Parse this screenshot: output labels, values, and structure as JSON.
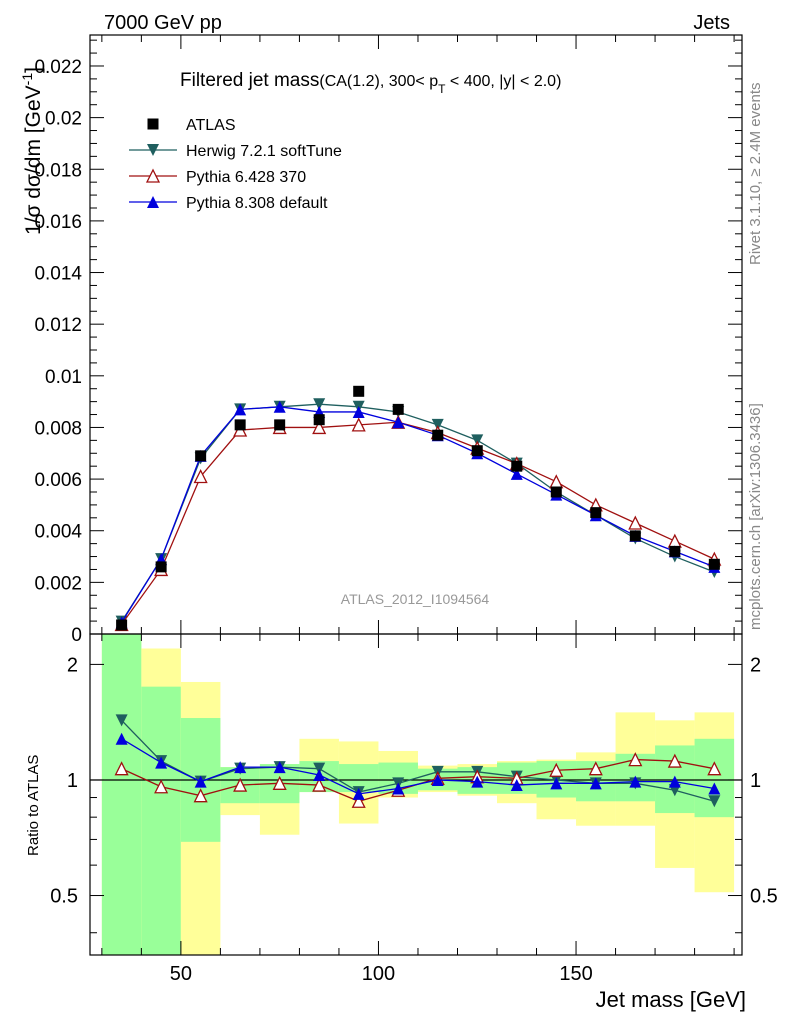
{
  "header": {
    "left": "7000 GeV pp",
    "right": "Jets"
  },
  "chart_title": {
    "main": "Filtered jet mass",
    "sub_prefix": "(CA(1.2), 300< p",
    "sub_sub": "T",
    "sub_suffix": " < 400, |y| < 2.0)"
  },
  "side_labels": {
    "rivet": "Rivet 3.1.10, ≥ 2.4M events",
    "mcplots": "mcplots.cern.ch [arXiv:1306.3436]"
  },
  "watermark": "ATLAS_2012_I1094564",
  "axes": {
    "ylabel_main": "1/σ dσ/dm [GeV",
    "ylabel_main_sup": "-1",
    "ylabel_main_close": "]",
    "ylabel_ratio": "Ratio to ATLAS",
    "xlabel": "Jet mass [GeV]"
  },
  "colors": {
    "herwig": "#1f5f5f",
    "pythia6": "#a01010",
    "pythia8": "#0000dd",
    "data": "#000000",
    "band_inner": "#99ff99",
    "band_outer": "#ffff99"
  },
  "chart_data": [
    {
      "type": "scatter",
      "panel": "main",
      "xlim": [
        27,
        192
      ],
      "ylim": [
        0,
        0.0232
      ],
      "x_ticks": [
        50,
        100,
        150
      ],
      "y_ticks": [
        0,
        0.002,
        0.004,
        0.006,
        0.008,
        0.01,
        0.012,
        0.014,
        0.016,
        0.018,
        0.02,
        0.022
      ],
      "y_tick_labels": [
        "0",
        "0.002",
        "0.004",
        "0.006",
        "0.008",
        "0.01",
        "0.012",
        "0.014",
        "0.016",
        "0.018",
        "0.02",
        "0.022"
      ],
      "legend_position": "top-left",
      "x": [
        35,
        45,
        55,
        65,
        75,
        85,
        95,
        105,
        115,
        125,
        135,
        145,
        155,
        165,
        175,
        185
      ],
      "series": [
        {
          "name": "ATLAS",
          "marker": "square",
          "values": [
            0.00035,
            0.0026,
            0.0069,
            0.0081,
            0.0081,
            0.0083,
            0.0094,
            0.0087,
            0.0077,
            0.0071,
            0.0065,
            0.0055,
            0.0047,
            0.0038,
            0.0032,
            0.0027
          ]
        },
        {
          "name": "Herwig 7.2.1 softTune",
          "marker": "triangle-down",
          "values": [
            0.00048,
            0.0029,
            0.0068,
            0.0087,
            0.0088,
            0.0089,
            0.0088,
            0.0086,
            0.0081,
            0.0075,
            0.0066,
            0.0055,
            0.0046,
            0.0037,
            0.003,
            0.0024
          ]
        },
        {
          "name": "Pythia 6.428 370",
          "marker": "triangle-open",
          "values": [
            0.00037,
            0.0025,
            0.0061,
            0.0079,
            0.008,
            0.008,
            0.0081,
            0.0082,
            0.0078,
            0.0072,
            0.0066,
            0.0059,
            0.005,
            0.0043,
            0.0036,
            0.0029
          ]
        },
        {
          "name": "Pythia 8.308 default",
          "marker": "triangle-up",
          "values": [
            0.00045,
            0.0029,
            0.0069,
            0.0087,
            0.0088,
            0.0086,
            0.0086,
            0.0082,
            0.0077,
            0.007,
            0.0062,
            0.0054,
            0.0046,
            0.0038,
            0.0032,
            0.0026
          ]
        }
      ]
    },
    {
      "type": "line",
      "panel": "ratio",
      "xlim": [
        27,
        192
      ],
      "ylim": [
        0.35,
        2.4
      ],
      "log_y": true,
      "y_ticks": [
        0.5,
        1,
        2
      ],
      "y_tick_labels": [
        "0.5",
        "1",
        "2"
      ],
      "x_tick_labels": [
        "50",
        "100",
        "150"
      ],
      "bin_edges": [
        30,
        40,
        50,
        60,
        70,
        80,
        90,
        100,
        110,
        120,
        130,
        140,
        150,
        160,
        170,
        180,
        190
      ],
      "band_inner": [
        [
          0.33,
          2.4
        ],
        [
          0.33,
          1.75
        ],
        [
          0.69,
          1.45
        ],
        [
          0.87,
          1.08
        ],
        [
          0.87,
          1.1
        ],
        [
          0.93,
          1.12
        ],
        [
          0.93,
          1.1
        ],
        [
          0.92,
          1.11
        ],
        [
          0.94,
          1.07
        ],
        [
          0.92,
          1.08
        ],
        [
          0.92,
          1.11
        ],
        [
          0.9,
          1.12
        ],
        [
          0.88,
          1.12
        ],
        [
          0.88,
          1.17
        ],
        [
          0.82,
          1.23
        ],
        [
          0.8,
          1.28
        ]
      ],
      "band_outer": [
        [
          0.33,
          2.4
        ],
        [
          0.33,
          2.2
        ],
        [
          0.33,
          1.8
        ],
        [
          0.81,
          1.08
        ],
        [
          0.72,
          1.1
        ],
        [
          0.93,
          1.28
        ],
        [
          0.77,
          1.26
        ],
        [
          0.9,
          1.19
        ],
        [
          0.93,
          1.09
        ],
        [
          0.91,
          1.1
        ],
        [
          0.87,
          1.12
        ],
        [
          0.79,
          1.13
        ],
        [
          0.76,
          1.18
        ],
        [
          0.76,
          1.5
        ],
        [
          0.59,
          1.43
        ],
        [
          0.51,
          1.5
        ]
      ],
      "series": [
        {
          "name": "Herwig 7.2.1 softTune",
          "marker": "triangle-down",
          "values": [
            1.43,
            1.12,
            0.99,
            1.07,
            1.08,
            1.07,
            0.93,
            0.98,
            1.05,
            1.05,
            1.02,
            1.0,
            0.98,
            0.98,
            0.94,
            0.88
          ]
        },
        {
          "name": "Pythia 6.428 370",
          "marker": "triangle-open",
          "values": [
            1.07,
            0.96,
            0.91,
            0.97,
            0.98,
            0.97,
            0.88,
            0.94,
            1.01,
            1.02,
            1.01,
            1.06,
            1.07,
            1.13,
            1.12,
            1.07
          ]
        },
        {
          "name": "Pythia 8.308 default",
          "marker": "triangle-up",
          "values": [
            1.28,
            1.11,
            0.99,
            1.08,
            1.08,
            1.03,
            0.92,
            0.95,
            1.0,
            0.99,
            0.97,
            0.98,
            0.98,
            0.99,
            0.99,
            0.95
          ]
        }
      ]
    }
  ]
}
